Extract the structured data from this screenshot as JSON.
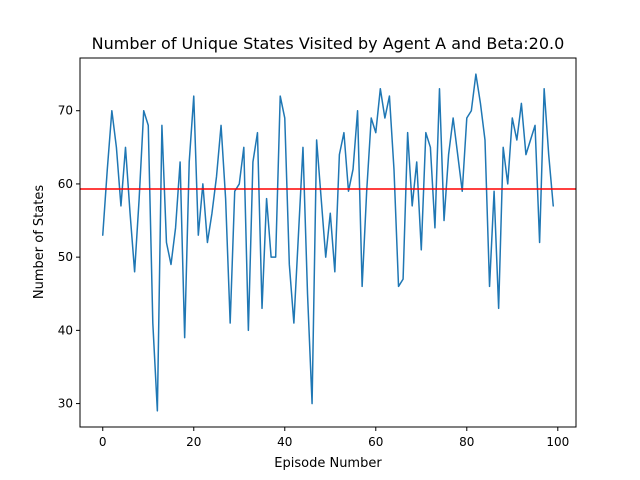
{
  "chart_data": {
    "type": "line",
    "title": "Number of Unique States Visited by Agent A and Beta:20.0",
    "xlabel": "Episode Number",
    "ylabel": "Number of States",
    "xlim": [
      -5,
      104
    ],
    "ylim": [
      26.8,
      77.2
    ],
    "xticks": [
      0,
      20,
      40,
      60,
      80,
      100
    ],
    "yticks": [
      30,
      40,
      50,
      60,
      70
    ],
    "grid": false,
    "series": [
      {
        "color": "#1f77b4",
        "x": [
          0,
          1,
          2,
          3,
          4,
          5,
          6,
          7,
          8,
          9,
          10,
          11,
          12,
          13,
          14,
          15,
          16,
          17,
          18,
          19,
          20,
          21,
          22,
          23,
          24,
          25,
          26,
          27,
          28,
          29,
          30,
          31,
          32,
          33,
          34,
          35,
          36,
          37,
          38,
          39,
          40,
          41,
          42,
          43,
          44,
          45,
          46,
          47,
          48,
          49,
          50,
          51,
          52,
          53,
          54,
          55,
          56,
          57,
          58,
          59,
          60,
          61,
          62,
          63,
          64,
          65,
          66,
          67,
          68,
          69,
          70,
          71,
          72,
          73,
          74,
          75,
          76,
          77,
          78,
          79,
          80,
          81,
          82,
          83,
          84,
          85,
          86,
          87,
          88,
          89,
          90,
          91,
          92,
          93,
          94,
          95,
          96,
          97,
          98,
          99
        ],
        "values": [
          53,
          62,
          70,
          65,
          57,
          65,
          56,
          48,
          58,
          70,
          68,
          41,
          29,
          68,
          52,
          49,
          54,
          63,
          39,
          63,
          72,
          53,
          60,
          52,
          56,
          61,
          68,
          58,
          41,
          59,
          60,
          65,
          40,
          63,
          67,
          43,
          58,
          50,
          50,
          72,
          69,
          49,
          41,
          53,
          65,
          45,
          30,
          66,
          58,
          50,
          56,
          48,
          64,
          67,
          59,
          62,
          70,
          46,
          59,
          69,
          67,
          73,
          69,
          72,
          62,
          46,
          47,
          67,
          57,
          63,
          51,
          67,
          65,
          54,
          73,
          55,
          64,
          69,
          64,
          59,
          69,
          70,
          75,
          71,
          66,
          46,
          59,
          43,
          65,
          60,
          69,
          66,
          71,
          64,
          66,
          68,
          52,
          73,
          64,
          57
        ]
      }
    ],
    "hlines": [
      {
        "y": 59.3,
        "color": "#ff0000"
      }
    ]
  }
}
